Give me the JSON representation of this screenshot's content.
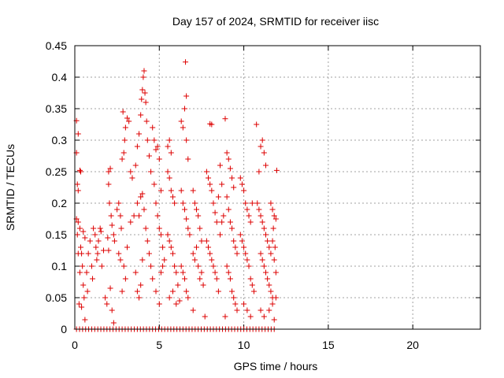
{
  "chart_data": {
    "type": "scatter",
    "title": "Day 157 of 2024, SRMTID for receiver iisc",
    "xlabel": "GPS time / hours",
    "ylabel": "SRMTID / TECUs",
    "xlim": [
      0,
      24
    ],
    "ylim": [
      0,
      0.45
    ],
    "xticks": [
      0,
      5,
      10,
      15,
      20
    ],
    "xtick_labels": [
      "0",
      "5",
      "10",
      "15",
      "20"
    ],
    "yticks": [
      0,
      0.05,
      0.1,
      0.15,
      0.2,
      0.25,
      0.3,
      0.35,
      0.4,
      0.45
    ],
    "ytick_labels": [
      "0",
      "0.05",
      "0.1",
      "0.15",
      "0.2",
      "0.25",
      "0.3",
      "0.35",
      "0.4",
      "0.45"
    ],
    "grid": true,
    "marker": "plus",
    "color": "#dd0000",
    "series": [
      {
        "points": [
          [
            0.1,
            0.331
          ],
          [
            0.2,
            0.31
          ],
          [
            0.1,
            0.28
          ],
          [
            0.15,
            0.23
          ],
          [
            0.2,
            0.22
          ],
          [
            0.3,
            0.252
          ],
          [
            0.35,
            0.25
          ],
          [
            0.1,
            0.175
          ],
          [
            0.2,
            0.17
          ],
          [
            0.15,
            0.15
          ],
          [
            0.3,
            0.16
          ],
          [
            0.4,
            0.12
          ],
          [
            0.45,
            0.1
          ],
          [
            0.3,
            0.09
          ],
          [
            0.5,
            0.07
          ],
          [
            0.55,
            0.05
          ],
          [
            0.25,
            0.04
          ],
          [
            0.4,
            0.035
          ],
          [
            0.6,
            0.015
          ],
          [
            0.2,
            0.12
          ],
          [
            0.35,
            0.13
          ],
          [
            0.5,
            0.155
          ],
          [
            0.6,
            0.145
          ],
          [
            0.7,
            0.09
          ],
          [
            0.75,
            0.06
          ],
          [
            0.8,
            0.12
          ],
          [
            0.9,
            0.14
          ],
          [
            1.0,
            0.1
          ],
          [
            1.05,
            0.08
          ],
          [
            1.1,
            0.16
          ],
          [
            1.2,
            0.15
          ],
          [
            1.25,
            0.13
          ],
          [
            1.3,
            0.11
          ],
          [
            1.35,
            0.12
          ],
          [
            1.4,
            0.14
          ],
          [
            1.5,
            0.16
          ],
          [
            1.55,
            0.155
          ],
          [
            1.6,
            0.1
          ],
          [
            1.7,
            0.125
          ],
          [
            1.8,
            0.05
          ],
          [
            1.9,
            0.04
          ],
          [
            2.0,
            0.25
          ],
          [
            2.1,
            0.255
          ],
          [
            2.0,
            0.23
          ],
          [
            2.05,
            0.2
          ],
          [
            2.15,
            0.18
          ],
          [
            2.2,
            0.165
          ],
          [
            2.3,
            0.15
          ],
          [
            2.35,
            0.14
          ],
          [
            2.1,
            0.065
          ],
          [
            2.2,
            0.03
          ],
          [
            2.3,
            0.01
          ],
          [
            1.95,
            0.145
          ],
          [
            2.0,
            0.125
          ],
          [
            2.5,
            0.19
          ],
          [
            2.6,
            0.2
          ],
          [
            2.7,
            0.18
          ],
          [
            2.75,
            0.16
          ],
          [
            2.8,
            0.27
          ],
          [
            2.9,
            0.28
          ],
          [
            2.95,
            0.3
          ],
          [
            3.0,
            0.32
          ],
          [
            3.1,
            0.335
          ],
          [
            2.85,
            0.345
          ],
          [
            3.2,
            0.33
          ],
          [
            3.3,
            0.25
          ],
          [
            3.4,
            0.24
          ],
          [
            2.6,
            0.12
          ],
          [
            2.7,
            0.11
          ],
          [
            2.8,
            0.06
          ],
          [
            2.9,
            0.1
          ],
          [
            3.0,
            0.08
          ],
          [
            3.1,
            0.13
          ],
          [
            3.3,
            0.17
          ],
          [
            3.5,
            0.18
          ],
          [
            3.6,
            0.26
          ],
          [
            3.7,
            0.29
          ],
          [
            3.8,
            0.31
          ],
          [
            3.9,
            0.34
          ],
          [
            3.95,
            0.365
          ],
          [
            4.0,
            0.38
          ],
          [
            4.05,
            0.4
          ],
          [
            4.1,
            0.41
          ],
          [
            4.15,
            0.375
          ],
          [
            4.2,
            0.36
          ],
          [
            4.25,
            0.33
          ],
          [
            4.3,
            0.3
          ],
          [
            4.4,
            0.275
          ],
          [
            4.5,
            0.25
          ],
          [
            3.7,
            0.2
          ],
          [
            3.8,
            0.18
          ],
          [
            3.9,
            0.21
          ],
          [
            4.0,
            0.215
          ],
          [
            4.1,
            0.19
          ],
          [
            4.2,
            0.16
          ],
          [
            4.3,
            0.14
          ],
          [
            4.4,
            0.12
          ],
          [
            4.5,
            0.1
          ],
          [
            3.6,
            0.09
          ],
          [
            3.7,
            0.06
          ],
          [
            3.8,
            0.05
          ],
          [
            3.9,
            0.07
          ],
          [
            4.0,
            0.11
          ],
          [
            4.6,
            0.32
          ],
          [
            4.7,
            0.3
          ],
          [
            4.8,
            0.285
          ],
          [
            4.9,
            0.29
          ],
          [
            5.0,
            0.27
          ],
          [
            5.1,
            0.22
          ],
          [
            4.7,
            0.23
          ],
          [
            4.8,
            0.2
          ],
          [
            4.9,
            0.18
          ],
          [
            5.0,
            0.16
          ],
          [
            5.1,
            0.15
          ],
          [
            5.2,
            0.13
          ],
          [
            5.3,
            0.11
          ],
          [
            4.6,
            0.08
          ],
          [
            4.8,
            0.06
          ],
          [
            5.0,
            0.04
          ],
          [
            5.1,
            0.09
          ],
          [
            5.2,
            0.1
          ],
          [
            5.5,
            0.29
          ],
          [
            5.6,
            0.3
          ],
          [
            5.7,
            0.28
          ],
          [
            5.5,
            0.25
          ],
          [
            5.6,
            0.24
          ],
          [
            5.7,
            0.22
          ],
          [
            5.8,
            0.21
          ],
          [
            5.9,
            0.2
          ],
          [
            5.5,
            0.15
          ],
          [
            5.6,
            0.14
          ],
          [
            5.7,
            0.13
          ],
          [
            5.8,
            0.12
          ],
          [
            5.9,
            0.1
          ],
          [
            6.0,
            0.09
          ],
          [
            6.1,
            0.07
          ],
          [
            5.6,
            0.05
          ],
          [
            5.8,
            0.06
          ],
          [
            6.0,
            0.04
          ],
          [
            6.3,
            0.33
          ],
          [
            6.4,
            0.32
          ],
          [
            6.5,
            0.35
          ],
          [
            6.6,
            0.37
          ],
          [
            6.55,
            0.424
          ],
          [
            6.6,
            0.3
          ],
          [
            6.7,
            0.27
          ],
          [
            6.3,
            0.22
          ],
          [
            6.4,
            0.2
          ],
          [
            6.5,
            0.19
          ],
          [
            6.6,
            0.175
          ],
          [
            6.7,
            0.16
          ],
          [
            6.8,
            0.15
          ],
          [
            6.3,
            0.1
          ],
          [
            6.4,
            0.09
          ],
          [
            6.5,
            0.08
          ],
          [
            6.6,
            0.06
          ],
          [
            6.7,
            0.05
          ],
          [
            6.2,
            0.045
          ],
          [
            7.0,
            0.22
          ],
          [
            7.1,
            0.2
          ],
          [
            7.2,
            0.19
          ],
          [
            7.3,
            0.18
          ],
          [
            7.4,
            0.16
          ],
          [
            7.5,
            0.14
          ],
          [
            7.0,
            0.12
          ],
          [
            7.1,
            0.11
          ],
          [
            7.2,
            0.13
          ],
          [
            7.3,
            0.1
          ],
          [
            7.4,
            0.08
          ],
          [
            7.5,
            0.09
          ],
          [
            7.6,
            0.07
          ],
          [
            7.7,
            0.02
          ],
          [
            7.0,
            0.03
          ],
          [
            7.8,
            0.25
          ],
          [
            7.9,
            0.24
          ],
          [
            8.0,
            0.23
          ],
          [
            8.1,
            0.22
          ],
          [
            8.2,
            0.2
          ],
          [
            8.3,
            0.185
          ],
          [
            8.4,
            0.17
          ],
          [
            8.5,
            0.21
          ],
          [
            8.6,
            0.26
          ],
          [
            8.7,
            0.23
          ],
          [
            8.0,
            0.326
          ],
          [
            8.1,
            0.325
          ],
          [
            7.8,
            0.14
          ],
          [
            7.9,
            0.13
          ],
          [
            8.0,
            0.12
          ],
          [
            8.1,
            0.11
          ],
          [
            8.2,
            0.1
          ],
          [
            8.3,
            0.09
          ],
          [
            8.4,
            0.08
          ],
          [
            8.5,
            0.06
          ],
          [
            8.6,
            0.15
          ],
          [
            8.7,
            0.17
          ],
          [
            8.8,
            0.18
          ],
          [
            8.9,
            0.334
          ],
          [
            9.0,
            0.28
          ],
          [
            9.1,
            0.27
          ],
          [
            9.2,
            0.255
          ],
          [
            9.3,
            0.24
          ],
          [
            9.4,
            0.225
          ],
          [
            9.0,
            0.21
          ],
          [
            9.1,
            0.19
          ],
          [
            9.2,
            0.17
          ],
          [
            9.3,
            0.16
          ],
          [
            9.4,
            0.14
          ],
          [
            9.5,
            0.13
          ],
          [
            9.6,
            0.12
          ],
          [
            9.0,
            0.1
          ],
          [
            9.1,
            0.09
          ],
          [
            9.2,
            0.08
          ],
          [
            9.3,
            0.06
          ],
          [
            9.4,
            0.05
          ],
          [
            8.9,
            0.02
          ],
          [
            9.5,
            0.04
          ],
          [
            9.6,
            0.03
          ],
          [
            9.8,
            0.24
          ],
          [
            9.9,
            0.23
          ],
          [
            10.0,
            0.22
          ],
          [
            10.1,
            0.2
          ],
          [
            10.2,
            0.19
          ],
          [
            10.3,
            0.18
          ],
          [
            10.4,
            0.17
          ],
          [
            10.5,
            0.2
          ],
          [
            9.8,
            0.15
          ],
          [
            9.9,
            0.14
          ],
          [
            10.0,
            0.13
          ],
          [
            10.1,
            0.12
          ],
          [
            10.2,
            0.11
          ],
          [
            10.3,
            0.1
          ],
          [
            10.4,
            0.08
          ],
          [
            10.5,
            0.07
          ],
          [
            10.6,
            0.06
          ],
          [
            10.0,
            0.04
          ],
          [
            10.2,
            0.03
          ],
          [
            10.4,
            0.02
          ],
          [
            10.75,
            0.325
          ],
          [
            10.9,
            0.25
          ],
          [
            11.0,
            0.29
          ],
          [
            11.1,
            0.3
          ],
          [
            11.2,
            0.28
          ],
          [
            11.3,
            0.26
          ],
          [
            10.8,
            0.2
          ],
          [
            10.9,
            0.19
          ],
          [
            11.0,
            0.18
          ],
          [
            11.1,
            0.17
          ],
          [
            11.2,
            0.16
          ],
          [
            11.3,
            0.15
          ],
          [
            11.4,
            0.14
          ],
          [
            11.5,
            0.13
          ],
          [
            11.0,
            0.12
          ],
          [
            11.1,
            0.11
          ],
          [
            11.2,
            0.1
          ],
          [
            11.3,
            0.09
          ],
          [
            11.4,
            0.08
          ],
          [
            11.5,
            0.07
          ],
          [
            11.6,
            0.06
          ],
          [
            11.7,
            0.05
          ],
          [
            11.0,
            0.03
          ],
          [
            11.2,
            0.02
          ],
          [
            11.5,
            0.03
          ],
          [
            11.6,
            0.2
          ],
          [
            11.7,
            0.19
          ],
          [
            11.8,
            0.18
          ],
          [
            11.9,
            0.175
          ],
          [
            11.75,
            0.16
          ],
          [
            11.85,
            0.13
          ],
          [
            11.8,
            0.11
          ],
          [
            11.9,
            0.09
          ],
          [
            11.95,
            0.252
          ],
          [
            11.9,
            0.05
          ],
          [
            11.7,
            0.04
          ],
          [
            11.8,
            0.015
          ],
          [
            11.7,
            0.14
          ],
          [
            11.6,
            0.12
          ]
        ]
      }
    ],
    "zero_band": {
      "y": 0,
      "x_from": 0.1,
      "x_to": 11.9,
      "x_step": 0.18
    }
  }
}
